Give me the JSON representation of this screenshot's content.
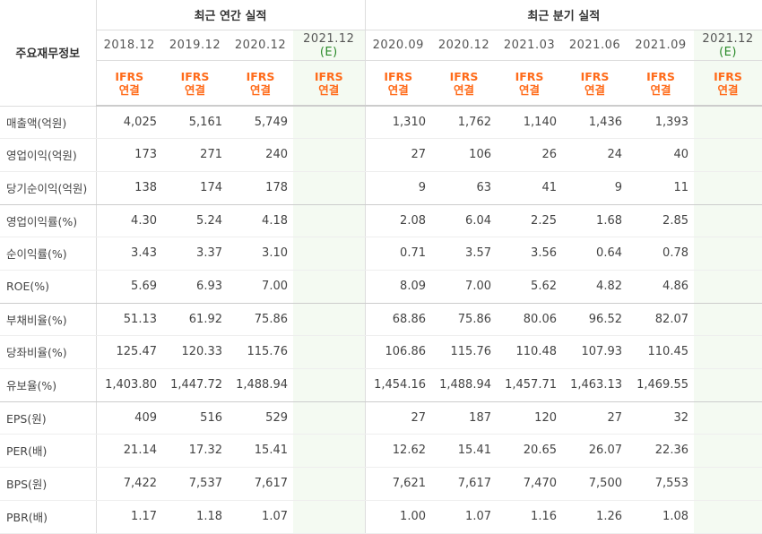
{
  "header": {
    "main_label": "주요재무정보",
    "annual_title": "최근 연간 실적",
    "quarterly_title": "최근 분기 실적",
    "ifrs_line1": "IFRS",
    "ifrs_line2": "연결",
    "estimate_mark": "(E)"
  },
  "annual_periods": [
    "2018.12",
    "2019.12",
    "2020.12",
    "2021.12"
  ],
  "quarterly_periods": [
    "2020.09",
    "2020.12",
    "2021.03",
    "2021.06",
    "2021.09",
    "2021.12"
  ],
  "rows": [
    {
      "label": "매출액(억원)",
      "annual": [
        "4,025",
        "5,161",
        "5,749",
        ""
      ],
      "quarterly": [
        "1,310",
        "1,762",
        "1,140",
        "1,436",
        "1,393",
        ""
      ]
    },
    {
      "label": "영업이익(억원)",
      "annual": [
        "173",
        "271",
        "240",
        ""
      ],
      "quarterly": [
        "27",
        "106",
        "26",
        "24",
        "40",
        ""
      ]
    },
    {
      "label": "당기순이익(억원)",
      "annual": [
        "138",
        "174",
        "178",
        ""
      ],
      "quarterly": [
        "9",
        "63",
        "41",
        "9",
        "11",
        ""
      ]
    },
    {
      "label": "영업이익률(%)",
      "annual": [
        "4.30",
        "5.24",
        "4.18",
        ""
      ],
      "quarterly": [
        "2.08",
        "6.04",
        "2.25",
        "1.68",
        "2.85",
        ""
      ]
    },
    {
      "label": "순이익률(%)",
      "annual": [
        "3.43",
        "3.37",
        "3.10",
        ""
      ],
      "quarterly": [
        "0.71",
        "3.57",
        "3.56",
        "0.64",
        "0.78",
        ""
      ]
    },
    {
      "label": "ROE(%)",
      "annual": [
        "5.69",
        "6.93",
        "7.00",
        ""
      ],
      "quarterly": [
        "8.09",
        "7.00",
        "5.62",
        "4.82",
        "4.86",
        ""
      ]
    },
    {
      "label": "부채비율(%)",
      "annual": [
        "51.13",
        "61.92",
        "75.86",
        ""
      ],
      "quarterly": [
        "68.86",
        "75.86",
        "80.06",
        "96.52",
        "82.07",
        ""
      ]
    },
    {
      "label": "당좌비율(%)",
      "annual": [
        "125.47",
        "120.33",
        "115.76",
        ""
      ],
      "quarterly": [
        "106.86",
        "115.76",
        "110.48",
        "107.93",
        "110.45",
        ""
      ]
    },
    {
      "label": "유보율(%)",
      "annual": [
        "1,403.80",
        "1,447.72",
        "1,488.94",
        ""
      ],
      "quarterly": [
        "1,454.16",
        "1,488.94",
        "1,457.71",
        "1,463.13",
        "1,469.55",
        ""
      ]
    },
    {
      "label": "EPS(원)",
      "annual": [
        "409",
        "516",
        "529",
        ""
      ],
      "quarterly": [
        "27",
        "187",
        "120",
        "27",
        "32",
        ""
      ]
    },
    {
      "label": "PER(배)",
      "annual": [
        "21.14",
        "17.32",
        "15.41",
        ""
      ],
      "quarterly": [
        "12.62",
        "15.41",
        "20.65",
        "26.07",
        "22.36",
        ""
      ]
    },
    {
      "label": "BPS(원)",
      "annual": [
        "7,422",
        "7,537",
        "7,617",
        ""
      ],
      "quarterly": [
        "7,621",
        "7,617",
        "7,470",
        "7,500",
        "7,553",
        ""
      ]
    },
    {
      "label": "PBR(배)",
      "annual": [
        "1.17",
        "1.18",
        "1.07",
        ""
      ],
      "quarterly": [
        "1.00",
        "1.07",
        "1.16",
        "1.26",
        "1.08",
        ""
      ]
    }
  ]
}
